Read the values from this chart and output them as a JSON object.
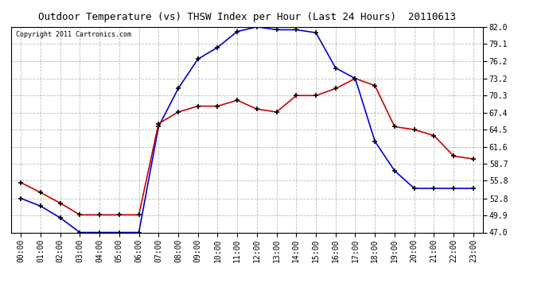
{
  "title": "Outdoor Temperature (vs) THSW Index per Hour (Last 24 Hours)  20110613",
  "copyright": "Copyright 2011 Cartronics.com",
  "x_labels": [
    "00:00",
    "01:00",
    "02:00",
    "03:00",
    "04:00",
    "05:00",
    "06:00",
    "07:00",
    "08:00",
    "09:00",
    "10:00",
    "11:00",
    "12:00",
    "13:00",
    "14:00",
    "15:00",
    "16:00",
    "17:00",
    "18:00",
    "19:00",
    "20:00",
    "21:00",
    "22:00",
    "23:00"
  ],
  "thsw_values": [
    52.8,
    51.5,
    49.5,
    47.0,
    47.0,
    47.0,
    47.0,
    65.0,
    71.5,
    76.5,
    78.5,
    81.2,
    82.0,
    81.5,
    81.5,
    81.0,
    75.0,
    73.2,
    62.5,
    57.5,
    54.5,
    54.5,
    54.5,
    54.5
  ],
  "temp_values": [
    55.5,
    53.8,
    52.0,
    50.0,
    50.0,
    50.0,
    50.0,
    65.5,
    67.5,
    68.5,
    68.5,
    69.5,
    68.0,
    67.5,
    70.3,
    70.3,
    71.5,
    73.2,
    72.0,
    65.0,
    64.5,
    63.5,
    60.0,
    59.5
  ],
  "thsw_color": "#0000dd",
  "temp_color": "#cc0000",
  "ylim_min": 47.0,
  "ylim_max": 82.0,
  "yticks": [
    47.0,
    49.9,
    52.8,
    55.8,
    58.7,
    61.6,
    64.5,
    67.4,
    70.3,
    73.2,
    76.2,
    79.1,
    82.0
  ],
  "bg_color": "#ffffff",
  "plot_bg_color": "#ffffff",
  "grid_color": "#aaaaaa",
  "title_fontsize": 9,
  "tick_fontsize": 7,
  "copyright_fontsize": 6
}
